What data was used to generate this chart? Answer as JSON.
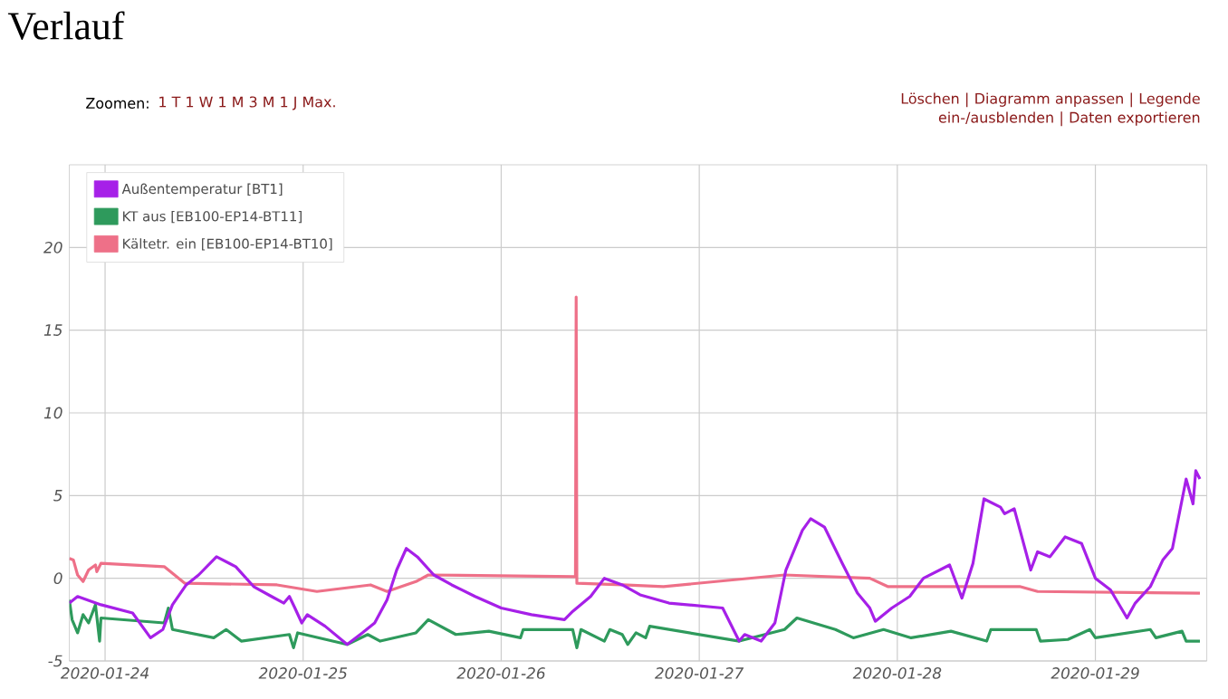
{
  "chart_data": {
    "type": "line",
    "title": "Verlauf",
    "annotations": [
      "Zoomen:",
      "1 T 1 W 1 M 3 M 1 J Max.",
      "Löschen | Diagramm anpassen | Legende ein-/ausblenden | Daten exportieren"
    ],
    "xlim": [
      "2020-01-23T19:40",
      "2020-01-29T13:30"
    ],
    "xticks": [
      "2020-01-24",
      "2020-01-25",
      "2020-01-26",
      "2020-01-27",
      "2020-01-28",
      "2020-01-29"
    ],
    "ylim": [
      -5,
      25
    ],
    "yticks": [
      -5,
      0,
      5,
      10,
      15,
      20
    ],
    "grid": true,
    "legend": "top left",
    "series": [
      {
        "name": "Außentemperatur [BT1]",
        "color": "#a620e8",
        "x": [
          "2020-01-23T19:40",
          "2020-01-23T20:40",
          "2020-01-23T23:30",
          "2020-01-24T03:20",
          "2020-01-24T05:30",
          "2020-01-24T07:00",
          "2020-01-24T08:10",
          "2020-01-24T09:50",
          "2020-01-24T11:20",
          "2020-01-24T13:30",
          "2020-01-24T15:50",
          "2020-01-24T18:00",
          "2020-01-24T20:10",
          "2020-01-24T21:40",
          "2020-01-24T22:20",
          "2020-01-24T23:00",
          "2020-01-24T23:50",
          "2020-01-25T00:30",
          "2020-01-25T02:40",
          "2020-01-25T05:20",
          "2020-01-25T07:10",
          "2020-01-25T08:40",
          "2020-01-25T10:10",
          "2020-01-25T11:20",
          "2020-01-25T12:30",
          "2020-01-25T13:50",
          "2020-01-25T15:50",
          "2020-01-25T18:00",
          "2020-01-25T20:50",
          "2020-01-26T00:00",
          "2020-01-26T03:40",
          "2020-01-26T07:40",
          "2020-01-26T08:40",
          "2020-01-26T10:50",
          "2020-01-26T12:30",
          "2020-01-26T14:40",
          "2020-01-26T16:50",
          "2020-01-26T20:20",
          "2020-01-27T02:50",
          "2020-01-27T04:50",
          "2020-01-27T05:30",
          "2020-01-27T07:30",
          "2020-01-27T09:10",
          "2020-01-27T10:30",
          "2020-01-27T12:30",
          "2020-01-27T13:30",
          "2020-01-27T15:10",
          "2020-01-27T17:20",
          "2020-01-27T19:10",
          "2020-01-27T20:40",
          "2020-01-27T21:20",
          "2020-01-27T23:20",
          "2020-01-28T01:30",
          "2020-01-28T03:10",
          "2020-01-28T06:20",
          "2020-01-28T07:50",
          "2020-01-28T09:10",
          "2020-01-28T10:30",
          "2020-01-28T12:30",
          "2020-01-28T13:00",
          "2020-01-28T14:10",
          "2020-01-28T16:10",
          "2020-01-28T17:00",
          "2020-01-28T18:30",
          "2020-01-28T20:20",
          "2020-01-28T22:20",
          "2020-01-29T00:00",
          "2020-01-29T01:50",
          "2020-01-29T03:50",
          "2020-01-29T04:50",
          "2020-01-29T06:40",
          "2020-01-29T08:10",
          "2020-01-29T09:20",
          "2020-01-29T11:00",
          "2020-01-29T11:50",
          "2020-01-29T12:10",
          "2020-01-29T12:40"
        ],
        "values": [
          -1.5,
          -1.1,
          -1.6,
          -2.1,
          -3.6,
          -3.1,
          -1.6,
          -0.4,
          0.2,
          1.3,
          0.7,
          -0.5,
          -1.1,
          -1.5,
          -1.1,
          -1.8,
          -2.7,
          -2.2,
          -2.9,
          -4.0,
          -3.3,
          -2.7,
          -1.3,
          0.5,
          1.8,
          1.3,
          0.2,
          -0.4,
          -1.1,
          -1.8,
          -2.2,
          -2.5,
          -2.0,
          -1.1,
          0.0,
          -0.4,
          -1.0,
          -1.5,
          -1.8,
          -3.8,
          -3.4,
          -3.8,
          -2.7,
          0.5,
          2.9,
          3.6,
          3.1,
          0.9,
          -0.9,
          -1.8,
          -2.6,
          -1.8,
          -1.1,
          0.0,
          0.8,
          -1.2,
          0.9,
          4.8,
          4.3,
          3.9,
          4.2,
          0.5,
          1.6,
          1.3,
          2.5,
          2.1,
          0.0,
          -0.7,
          -2.4,
          -1.5,
          -0.5,
          1.1,
          1.8,
          6.0,
          4.5,
          6.5,
          6.0
        ]
      },
      {
        "name": "KT aus [EB100-EP14-BT11]",
        "color": "#2e9a5c",
        "x": [
          "2020-01-23T19:40",
          "2020-01-23T20:00",
          "2020-01-23T20:40",
          "2020-01-23T21:20",
          "2020-01-23T22:00",
          "2020-01-23T22:50",
          "2020-01-23T23:20",
          "2020-01-23T23:30",
          "2020-01-24T07:10",
          "2020-01-24T07:40",
          "2020-01-24T08:10",
          "2020-01-24T13:10",
          "2020-01-24T14:40",
          "2020-01-24T16:30",
          "2020-01-24T22:20",
          "2020-01-24T22:50",
          "2020-01-24T23:20",
          "2020-01-25T05:20",
          "2020-01-25T07:50",
          "2020-01-25T09:20",
          "2020-01-25T13:40",
          "2020-01-25T15:10",
          "2020-01-25T18:30",
          "2020-01-25T22:30",
          "2020-01-26T02:20",
          "2020-01-26T02:40",
          "2020-01-26T08:40",
          "2020-01-26T09:10",
          "2020-01-26T09:40",
          "2020-01-26T12:30",
          "2020-01-26T13:10",
          "2020-01-26T14:40",
          "2020-01-26T15:20",
          "2020-01-26T16:20",
          "2020-01-26T17:30",
          "2020-01-26T18:00",
          "2020-01-27T04:50",
          "2020-01-27T10:20",
          "2020-01-27T11:50",
          "2020-01-27T16:30",
          "2020-01-27T18:40",
          "2020-01-27T22:20",
          "2020-01-28T01:40",
          "2020-01-28T06:30",
          "2020-01-28T10:50",
          "2020-01-28T11:20",
          "2020-01-28T16:50",
          "2020-01-28T17:20",
          "2020-01-28T20:40",
          "2020-01-28T23:20",
          "2020-01-29T00:00",
          "2020-01-29T06:40",
          "2020-01-29T07:20",
          "2020-01-29T10:30",
          "2020-01-29T11:00",
          "2020-01-29T12:40"
        ],
        "values": [
          -1.3,
          -2.5,
          -3.3,
          -2.2,
          -2.7,
          -1.6,
          -3.8,
          -2.4,
          -2.7,
          -1.8,
          -3.1,
          -3.6,
          -3.1,
          -3.8,
          -3.4,
          -4.2,
          -3.3,
          -4.0,
          -3.4,
          -3.8,
          -3.3,
          -2.5,
          -3.4,
          -3.2,
          -3.6,
          -3.1,
          -3.1,
          -4.2,
          -3.1,
          -3.8,
          -3.1,
          -3.4,
          -4.0,
          -3.3,
          -3.6,
          -2.9,
          -3.8,
          -3.1,
          -2.4,
          -3.1,
          -3.6,
          -3.1,
          -3.6,
          -3.2,
          -3.8,
          -3.1,
          -3.1,
          -3.8,
          -3.7,
          -3.1,
          -3.6,
          -3.1,
          -3.6,
          -3.2,
          -3.8,
          -3.8
        ]
      },
      {
        "name": "Kältetr. ein [EB100-EP14-BT10]",
        "color": "#ee7088",
        "x": [
          "2020-01-23T19:40",
          "2020-01-23T20:10",
          "2020-01-23T20:40",
          "2020-01-23T21:20",
          "2020-01-23T22:00",
          "2020-01-23T22:50",
          "2020-01-23T23:00",
          "2020-01-23T23:30",
          "2020-01-24T07:10",
          "2020-01-24T09:40",
          "2020-01-24T20:50",
          "2020-01-25T01:40",
          "2020-01-25T08:10",
          "2020-01-25T10:10",
          "2020-01-25T13:40",
          "2020-01-25T15:10",
          "2020-01-26T09:00",
          "2020-01-26T09:05",
          "2020-01-26T09:10",
          "2020-01-26T14:40",
          "2020-01-26T19:40",
          "2020-01-27T10:20",
          "2020-01-27T20:40",
          "2020-01-27T22:50",
          "2020-01-28T14:50",
          "2020-01-28T17:00",
          "2020-01-29T12:40"
        ],
        "values": [
          1.2,
          1.1,
          0.2,
          -0.2,
          0.5,
          0.8,
          0.4,
          0.9,
          0.7,
          -0.3,
          -0.4,
          -0.8,
          -0.4,
          -0.8,
          -0.2,
          0.2,
          0.1,
          17.0,
          -0.3,
          -0.4,
          -0.5,
          0.2,
          0.0,
          -0.5,
          -0.5,
          -0.8,
          -0.9
        ]
      }
    ]
  }
}
